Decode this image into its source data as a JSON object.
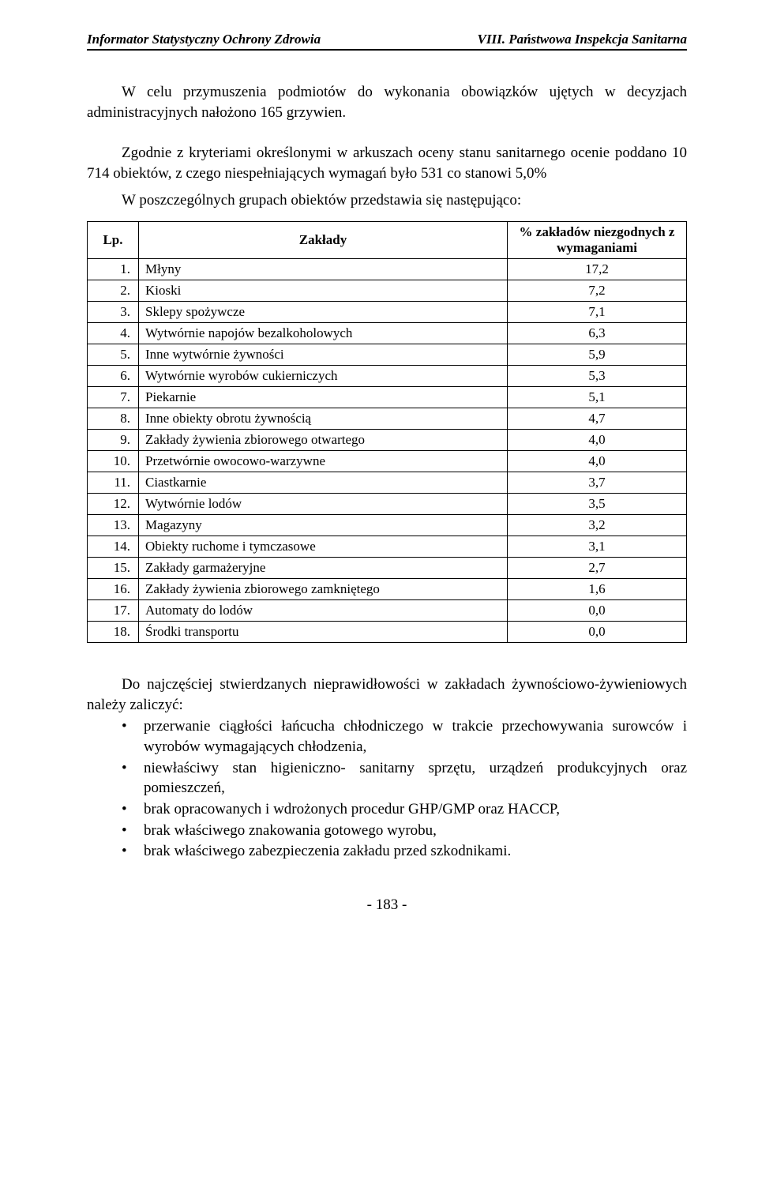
{
  "header": {
    "left": "Informator Statystyczny Ochrony Zdrowia",
    "right": "VIII. Państwowa Inspekcja Sanitarna"
  },
  "paragraphs": {
    "p1": "W celu przymuszenia podmiotów do wykonania obowiązków ujętych w decyzjach administracyjnych nałożono 165 grzywien.",
    "p2": "Zgodnie z kryteriami określonymi w arkuszach oceny stanu sanitarnego ocenie poddano 10 714 obiektów, z czego niespełniających wymagań było 531 co stanowi 5,0%",
    "p3": "W poszczególnych grupach obiektów przedstawia się następująco:"
  },
  "table": {
    "head": {
      "lp": "Lp.",
      "name": "Zakłady",
      "val": "% zakładów niezgodnych z wymaganiami"
    },
    "rows": [
      {
        "lp": "1.",
        "name": "Młyny",
        "val": "17,2"
      },
      {
        "lp": "2.",
        "name": "Kioski",
        "val": "7,2"
      },
      {
        "lp": "3.",
        "name": "Sklepy spożywcze",
        "val": "7,1"
      },
      {
        "lp": "4.",
        "name": "Wytwórnie napojów bezalkoholowych",
        "val": "6,3"
      },
      {
        "lp": "5.",
        "name": "Inne wytwórnie żywności",
        "val": "5,9"
      },
      {
        "lp": "6.",
        "name": "Wytwórnie wyrobów cukierniczych",
        "val": "5,3"
      },
      {
        "lp": "7.",
        "name": "Piekarnie",
        "val": "5,1"
      },
      {
        "lp": "8.",
        "name": "Inne obiekty obrotu żywnością",
        "val": "4,7"
      },
      {
        "lp": "9.",
        "name": "Zakłady żywienia zbiorowego otwartego",
        "val": "4,0"
      },
      {
        "lp": "10.",
        "name": "Przetwórnie owocowo-warzywne",
        "val": "4,0"
      },
      {
        "lp": "11.",
        "name": "Ciastkarnie",
        "val": "3,7"
      },
      {
        "lp": "12.",
        "name": "Wytwórnie lodów",
        "val": "3,5"
      },
      {
        "lp": "13.",
        "name": "Magazyny",
        "val": "3,2"
      },
      {
        "lp": "14.",
        "name": "Obiekty ruchome i tymczasowe",
        "val": "3,1"
      },
      {
        "lp": "15.",
        "name": "Zakłady garmażeryjne",
        "val": "2,7"
      },
      {
        "lp": "16.",
        "name": "Zakłady żywienia zbiorowego zamkniętego",
        "val": "1,6"
      },
      {
        "lp": "17.",
        "name": "Automaty do lodów",
        "val": "0,0"
      },
      {
        "lp": "18.",
        "name": "Środki transportu",
        "val": "0,0"
      }
    ]
  },
  "list": {
    "intro": "Do najczęściej stwierdzanych nieprawidłowości w zakładach żywnościowo-żywieniowych należy zaliczyć:",
    "items": [
      "przerwanie ciągłości łańcucha chłodniczego w trakcie przechowywania surowców i wyrobów wymagających chłodzenia,",
      "niewłaściwy stan higieniczno- sanitarny sprzętu, urządzeń produkcyjnych oraz pomieszczeń,",
      "brak opracowanych i wdrożonych procedur GHP/GMP oraz HACCP,",
      "brak właściwego znakowania gotowego wyrobu,",
      "brak właściwego zabezpieczenia zakładu przed szkodnikami."
    ]
  },
  "footer": "- 183 -"
}
